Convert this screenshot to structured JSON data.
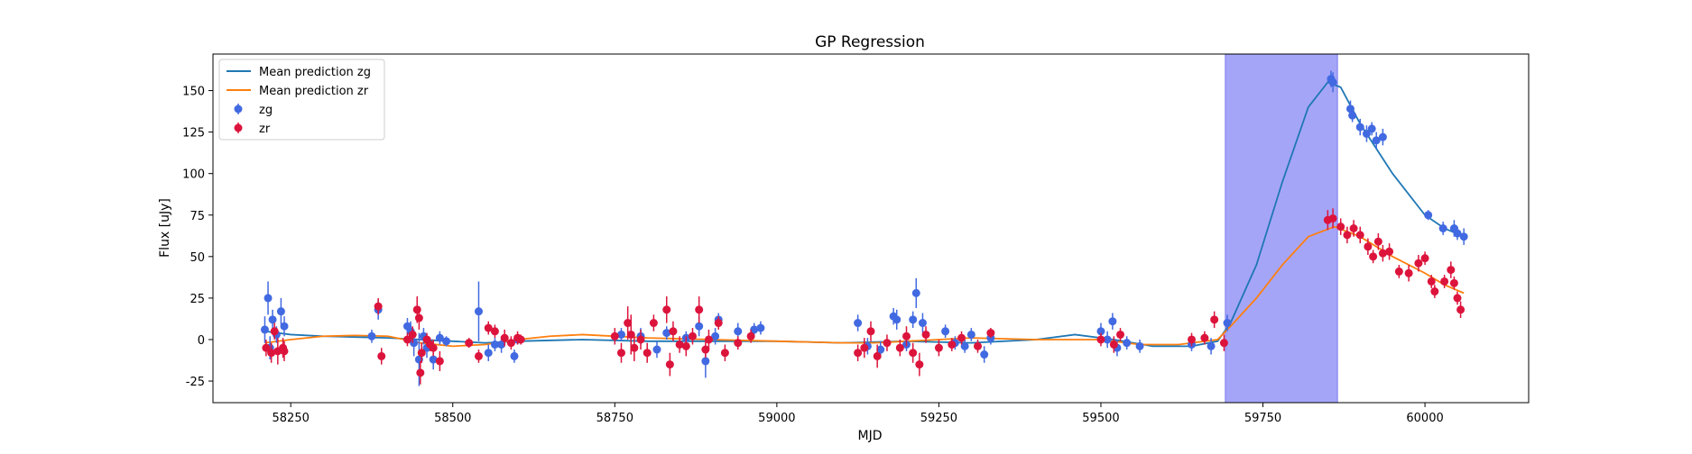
{
  "chart_data": {
    "type": "scatter",
    "title": "GP Regression",
    "xlabel": "MJD",
    "ylabel": "Flux [uJy]",
    "xlim": [
      58130,
      60160
    ],
    "ylim": [
      -38,
      172
    ],
    "x_ticks": [
      58250,
      58500,
      58750,
      59000,
      59250,
      59500,
      59750,
      60000
    ],
    "y_ticks": [
      -25,
      0,
      25,
      50,
      75,
      100,
      125,
      150
    ],
    "legend_position": "top-left",
    "shaded_region": {
      "x_start": 59692,
      "x_end": 59865,
      "color": "#a5a5f8"
    },
    "colors": {
      "zg": "#4169e1",
      "zr": "#dc143c",
      "mean_zg": "#1f77b4",
      "mean_zr": "#ff7f0e"
    },
    "legend": [
      {
        "label": "Mean prediction zg",
        "kind": "line",
        "color": "#1f77b4"
      },
      {
        "label": "Mean prediction zr",
        "kind": "line",
        "color": "#ff7f0e"
      },
      {
        "label": "zg",
        "kind": "marker",
        "color": "#4169e1"
      },
      {
        "label": "zr",
        "kind": "marker",
        "color": "#dc143c"
      }
    ],
    "series": [
      {
        "name": "Mean prediction zg",
        "kind": "line",
        "x": [
          58210,
          58250,
          58300,
          58350,
          58400,
          58450,
          58500,
          58550,
          58600,
          58700,
          58800,
          58900,
          59000,
          59100,
          59200,
          59300,
          59400,
          59460,
          59520,
          59580,
          59640,
          59680,
          59700,
          59740,
          59780,
          59820,
          59850,
          59870,
          59900,
          59950,
          60000,
          60030,
          60060
        ],
        "y": [
          5,
          3,
          2,
          1.5,
          1,
          0,
          -1,
          -2,
          -1,
          0,
          -1,
          -1,
          -1,
          -2,
          -1,
          -2,
          0,
          3,
          0,
          -4,
          -4,
          -1,
          10,
          45,
          95,
          140,
          155,
          152,
          130,
          100,
          75,
          67,
          62
        ]
      },
      {
        "name": "Mean prediction zr",
        "kind": "line",
        "x": [
          58210,
          58250,
          58300,
          58350,
          58400,
          58450,
          58500,
          58550,
          58600,
          58650,
          58700,
          58800,
          58900,
          59000,
          59100,
          59150,
          59200,
          59300,
          59400,
          59500,
          59560,
          59620,
          59680,
          59700,
          59740,
          59780,
          59820,
          59860,
          59900,
          59950,
          60000,
          60030,
          60060
        ],
        "y": [
          -2,
          0,
          2,
          2.5,
          2,
          -2,
          -4,
          -3,
          0,
          2,
          3,
          1,
          0,
          -1,
          -2,
          -2,
          -1,
          1,
          0,
          0,
          -3,
          -3,
          0,
          8,
          25,
          45,
          62,
          68,
          62,
          50,
          40,
          33,
          28
        ]
      },
      {
        "name": "zg",
        "kind": "errorbar",
        "points": [
          [
            58210,
            6,
            8
          ],
          [
            58215,
            25,
            10
          ],
          [
            58218,
            -5,
            7
          ],
          [
            58222,
            12,
            6
          ],
          [
            58228,
            3,
            5
          ],
          [
            58235,
            17,
            8
          ],
          [
            58240,
            8,
            6
          ],
          [
            58375,
            2,
            4
          ],
          [
            58385,
            18,
            6
          ],
          [
            58430,
            8,
            5
          ],
          [
            58435,
            5,
            6
          ],
          [
            58440,
            -2,
            8
          ],
          [
            58448,
            -12,
            16
          ],
          [
            58455,
            2,
            5
          ],
          [
            58460,
            -5,
            6
          ],
          [
            58470,
            -12,
            6
          ],
          [
            58480,
            1,
            4
          ],
          [
            58490,
            -1,
            3
          ],
          [
            58540,
            17,
            18
          ],
          [
            58555,
            -8,
            5
          ],
          [
            58565,
            -3,
            4
          ],
          [
            58575,
            -3,
            5
          ],
          [
            58595,
            -10,
            4
          ],
          [
            58600,
            0,
            3
          ],
          [
            58760,
            3,
            4
          ],
          [
            58790,
            2,
            5
          ],
          [
            58815,
            -6,
            5
          ],
          [
            58830,
            4,
            4
          ],
          [
            58860,
            1,
            4
          ],
          [
            58880,
            8,
            6
          ],
          [
            58890,
            -13,
            10
          ],
          [
            58905,
            2,
            5
          ],
          [
            58910,
            12,
            4
          ],
          [
            58940,
            5,
            5
          ],
          [
            58965,
            6,
            4
          ],
          [
            58975,
            7,
            4
          ],
          [
            59125,
            10,
            5
          ],
          [
            59140,
            -4,
            5
          ],
          [
            59160,
            -6,
            5
          ],
          [
            59180,
            14,
            5
          ],
          [
            59185,
            12,
            6
          ],
          [
            59200,
            -3,
            4
          ],
          [
            59210,
            12,
            5
          ],
          [
            59215,
            28,
            9
          ],
          [
            59225,
            10,
            6
          ],
          [
            59260,
            5,
            4
          ],
          [
            59275,
            -2,
            4
          ],
          [
            59290,
            -4,
            4
          ],
          [
            59300,
            3,
            4
          ],
          [
            59320,
            -9,
            5
          ],
          [
            59330,
            1,
            4
          ],
          [
            59500,
            5,
            5
          ],
          [
            59510,
            0,
            5
          ],
          [
            59518,
            11,
            5
          ],
          [
            59525,
            -5,
            5
          ],
          [
            59540,
            -2,
            4
          ],
          [
            59560,
            -4,
            4
          ],
          [
            59640,
            -3,
            4
          ],
          [
            59670,
            -4,
            5
          ],
          [
            59695,
            10,
            5
          ],
          [
            59855,
            157,
            5
          ],
          [
            59858,
            155,
            6
          ],
          [
            59885,
            139,
            5
          ],
          [
            59888,
            135,
            4
          ],
          [
            59900,
            128,
            5
          ],
          [
            59910,
            124,
            5
          ],
          [
            59918,
            127,
            4
          ],
          [
            59925,
            120,
            5
          ],
          [
            59935,
            122,
            5
          ],
          [
            60005,
            75,
            3
          ],
          [
            60028,
            67,
            4
          ],
          [
            60045,
            67,
            5
          ],
          [
            60060,
            62,
            5
          ],
          [
            60050,
            64,
            4
          ]
        ]
      },
      {
        "name": "zr",
        "kind": "errorbar",
        "points": [
          [
            58212,
            -5,
            5
          ],
          [
            58220,
            -8,
            6
          ],
          [
            58225,
            5,
            5
          ],
          [
            58230,
            -7,
            8
          ],
          [
            58238,
            -5,
            6
          ],
          [
            58240,
            -7,
            6
          ],
          [
            58385,
            20,
            5
          ],
          [
            58390,
            -10,
            5
          ],
          [
            58430,
            0,
            4
          ],
          [
            58438,
            3,
            5
          ],
          [
            58445,
            18,
            8
          ],
          [
            58448,
            13,
            7
          ],
          [
            58450,
            -20,
            7
          ],
          [
            58452,
            -8,
            6
          ],
          [
            58460,
            0,
            4
          ],
          [
            58465,
            -3,
            4
          ],
          [
            58470,
            -5,
            5
          ],
          [
            58480,
            -13,
            6
          ],
          [
            58525,
            -2,
            3
          ],
          [
            58540,
            -10,
            4
          ],
          [
            58555,
            7,
            4
          ],
          [
            58565,
            5,
            4
          ],
          [
            58580,
            1,
            5
          ],
          [
            58590,
            -2,
            4
          ],
          [
            58600,
            1,
            4
          ],
          [
            58605,
            0,
            3
          ],
          [
            58750,
            2,
            5
          ],
          [
            58760,
            -8,
            6
          ],
          [
            58770,
            10,
            10
          ],
          [
            58775,
            3,
            12
          ],
          [
            58780,
            -5,
            8
          ],
          [
            58790,
            0,
            6
          ],
          [
            58800,
            -8,
            6
          ],
          [
            58810,
            10,
            5
          ],
          [
            58830,
            18,
            8
          ],
          [
            58835,
            -15,
            7
          ],
          [
            58840,
            5,
            6
          ],
          [
            58850,
            -3,
            5
          ],
          [
            58860,
            -4,
            6
          ],
          [
            58870,
            2,
            5
          ],
          [
            58880,
            18,
            8
          ],
          [
            58890,
            -6,
            5
          ],
          [
            58895,
            0,
            6
          ],
          [
            58910,
            10,
            4
          ],
          [
            58920,
            -8,
            5
          ],
          [
            58940,
            -2,
            4
          ],
          [
            58960,
            2,
            4
          ],
          [
            59125,
            -8,
            5
          ],
          [
            59135,
            -5,
            6
          ],
          [
            59145,
            5,
            6
          ],
          [
            59155,
            -10,
            7
          ],
          [
            59170,
            -2,
            5
          ],
          [
            59190,
            -5,
            5
          ],
          [
            59200,
            2,
            6
          ],
          [
            59210,
            -8,
            6
          ],
          [
            59220,
            -15,
            7
          ],
          [
            59230,
            3,
            5
          ],
          [
            59250,
            -5,
            5
          ],
          [
            59270,
            -3,
            4
          ],
          [
            59285,
            1,
            4
          ],
          [
            59310,
            -4,
            4
          ],
          [
            59330,
            4,
            3
          ],
          [
            59500,
            0,
            4
          ],
          [
            59520,
            -3,
            5
          ],
          [
            59530,
            3,
            4
          ],
          [
            59640,
            0,
            4
          ],
          [
            59660,
            1,
            4
          ],
          [
            59675,
            12,
            5
          ],
          [
            59690,
            -2,
            5
          ],
          [
            59850,
            72,
            6
          ],
          [
            59858,
            73,
            6
          ],
          [
            59870,
            68,
            5
          ],
          [
            59880,
            63,
            5
          ],
          [
            59890,
            67,
            5
          ],
          [
            59900,
            63,
            5
          ],
          [
            59912,
            56,
            5
          ],
          [
            59920,
            50,
            4
          ],
          [
            59928,
            59,
            5
          ],
          [
            59935,
            52,
            5
          ],
          [
            59945,
            53,
            5
          ],
          [
            59960,
            41,
            4
          ],
          [
            59975,
            40,
            5
          ],
          [
            59990,
            46,
            5
          ],
          [
            60000,
            49,
            4
          ],
          [
            60010,
            35,
            4
          ],
          [
            60015,
            29,
            4
          ],
          [
            60030,
            35,
            4
          ],
          [
            60040,
            42,
            5
          ],
          [
            60050,
            25,
            4
          ],
          [
            60055,
            18,
            5
          ],
          [
            60045,
            34,
            4
          ]
        ]
      }
    ]
  }
}
